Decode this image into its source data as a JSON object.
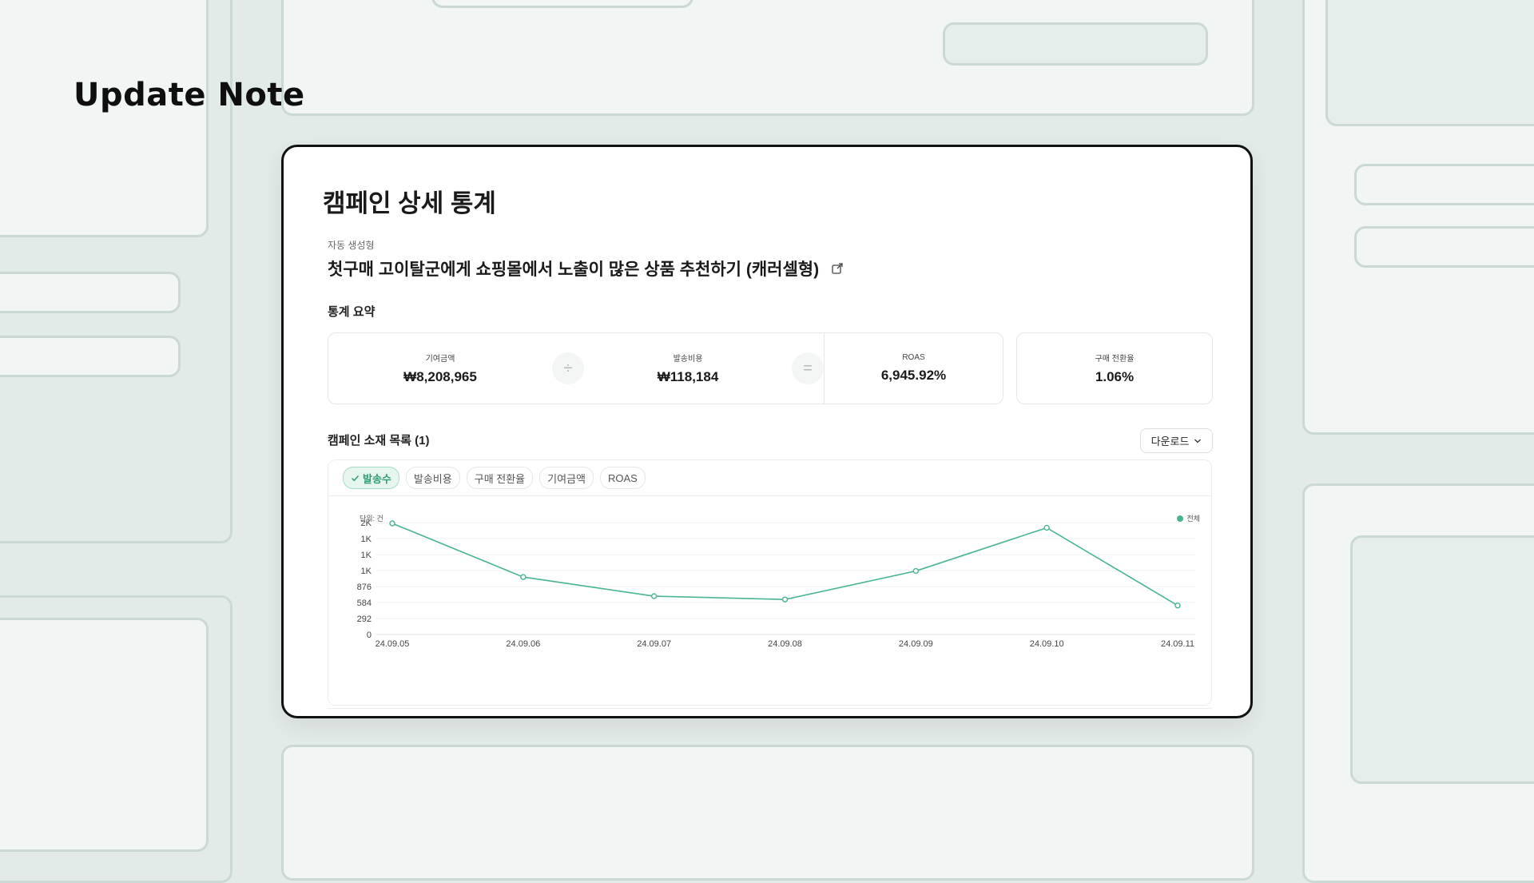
{
  "page": {
    "title": "Update Note"
  },
  "card": {
    "title": "캠페인 상세 통계",
    "campaign_type": "자동 생성형",
    "campaign_name": "첫구매 고이탈군에게 쇼핑몰에서 노출이 많은 상품 추천하기 (캐러셀형)",
    "summary_label": "통계 요약",
    "summary": {
      "contribution": {
        "label": "기여금액",
        "value": "₩8,208,965"
      },
      "divide_op": "÷",
      "cost": {
        "label": "발송비용",
        "value": "₩118,184"
      },
      "equals_op": "=",
      "roas": {
        "label": "ROAS",
        "value": "6,945.92%"
      },
      "conversion": {
        "label": "구매 전환율",
        "value": "1.06%"
      }
    },
    "list_label": "캠페인 소재 목록 (1)",
    "download_label": "다운로드",
    "tabs": [
      {
        "label": "발송수",
        "active": true
      },
      {
        "label": "발송비용",
        "active": false
      },
      {
        "label": "구매 전환율",
        "active": false
      },
      {
        "label": "기여금액",
        "active": false
      },
      {
        "label": "ROAS",
        "active": false
      }
    ],
    "unit_label": "단위: 건",
    "legend_label": "전체"
  },
  "chart_data": {
    "type": "line",
    "x": [
      "24.09.05",
      "24.09.06",
      "24.09.07",
      "24.09.08",
      "24.09.09",
      "24.09.10",
      "24.09.11"
    ],
    "y_ticks": [
      "0",
      "292",
      "584",
      "876",
      "1K",
      "1K",
      "1K",
      "2K"
    ],
    "ylim": [
      0,
      2044
    ],
    "series": [
      {
        "name": "전체",
        "color": "#47b58f",
        "values": [
          2030,
          1050,
          700,
          640,
          1160,
          1950,
          530
        ]
      }
    ],
    "grid": true,
    "legend": "top-right"
  }
}
